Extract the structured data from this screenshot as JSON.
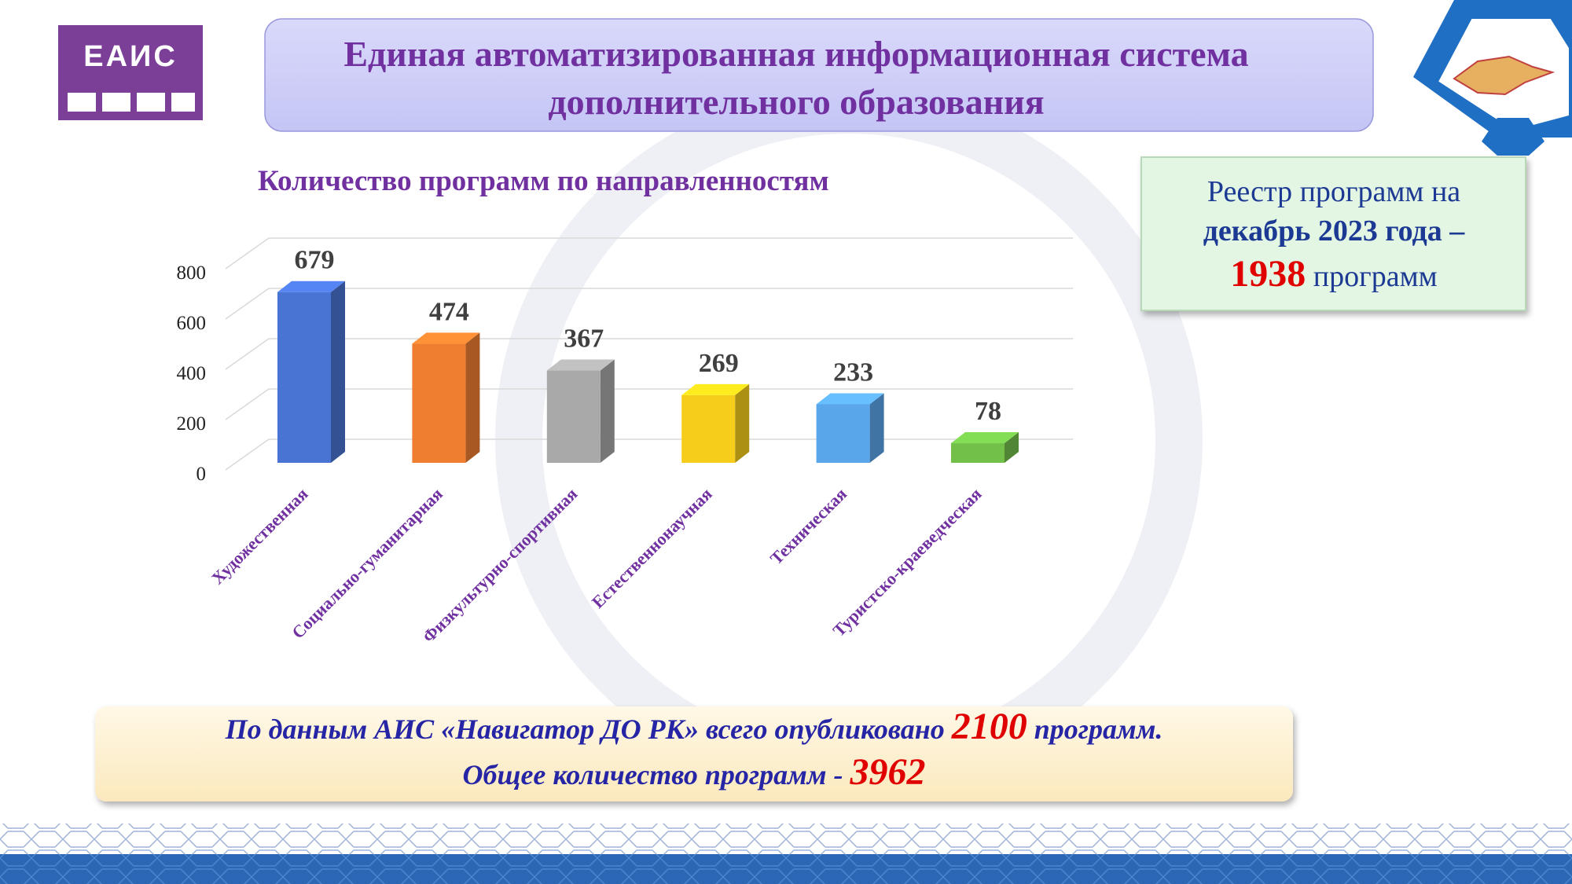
{
  "logo": "ЕАИС",
  "header": {
    "title_lines": [
      "Единая автоматизированная информационная система",
      "дополнительного образования"
    ]
  },
  "registry": {
    "line1": "Реестр программ на",
    "line2": "декабрь 2023 года –",
    "count": 1938,
    "count_suffix": "программ"
  },
  "footer": {
    "line1_before": "По данным АИС «Навигатор ДО РК» всего опубликовано",
    "published": 2100,
    "line1_after": "программ.",
    "line2_before": "Общее количество программ -",
    "total": 3962
  },
  "chart_data": {
    "type": "bar",
    "title": "Количество программ по направленностям",
    "categories": [
      "Художественная",
      "Социально-гуманитарная",
      "Физкультурно-спортивная",
      "Естественнонаучная",
      "Техническая",
      "Туристско-краеведческая"
    ],
    "values": [
      679,
      474,
      367,
      269,
      233,
      78
    ],
    "colors": [
      "#4a74d4",
      "#f07e30",
      "#a9a9a9",
      "#f5cd1a",
      "#5aa6ea",
      "#72c04a"
    ],
    "ylim": [
      0,
      800
    ],
    "yticks": [
      0,
      200,
      400,
      600,
      800
    ],
    "grid": true
  }
}
